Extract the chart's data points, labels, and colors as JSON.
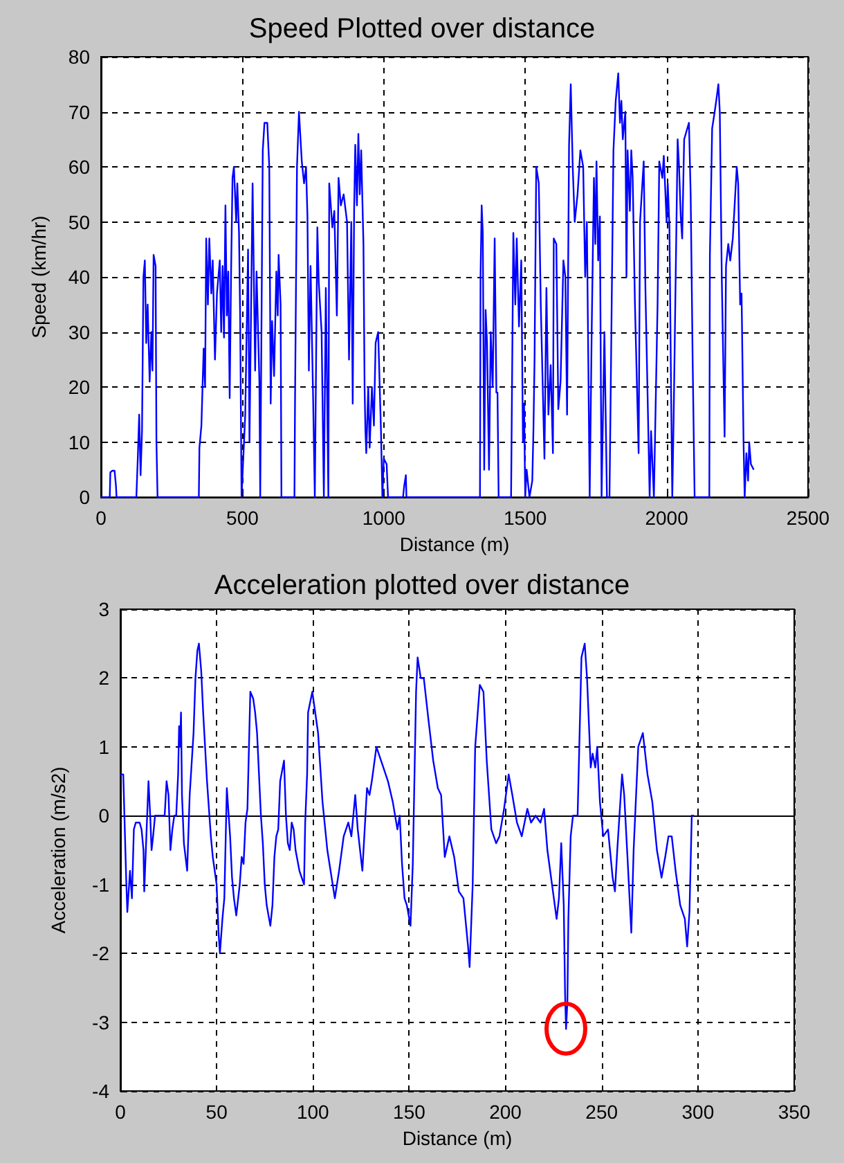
{
  "chart_data": [
    {
      "type": "line",
      "title": "Speed Plotted over distance",
      "xlabel": "Distance (m)",
      "ylabel": "Speed (km/hr)",
      "xlim": [
        0,
        2500
      ],
      "ylim": [
        0,
        80
      ],
      "xticks": [
        0,
        500,
        1000,
        1500,
        2000,
        2500
      ],
      "yticks": [
        0,
        10,
        20,
        30,
        40,
        50,
        60,
        70,
        80
      ],
      "grid": true,
      "x": [
        0,
        31,
        33,
        40,
        48,
        53,
        55,
        125,
        130,
        135,
        140,
        145,
        150,
        155,
        160,
        165,
        172,
        178,
        182,
        186,
        193,
        196,
        200,
        346,
        348,
        355,
        363,
        368,
        372,
        378,
        383,
        390,
        395,
        403,
        410,
        420,
        425,
        430,
        435,
        440,
        445,
        450,
        455,
        460,
        465,
        470,
        478,
        482,
        488,
        492,
        497,
        510,
        520,
        525,
        536,
        545,
        550,
        560,
        563,
        572,
        578,
        588,
        595,
        600,
        605,
        612,
        620,
        625,
        628,
        635,
        638,
        684,
        686,
        693,
        700,
        710,
        718,
        725,
        730,
        735,
        741,
        750,
        756,
        765,
        770,
        780,
        788,
        795,
        804,
        807,
        818,
        825,
        834,
        840,
        848,
        858,
        870,
        877,
        885,
        890,
        895,
        899,
        905,
        910,
        915,
        920,
        928,
        932,
        935,
        938,
        945,
        950,
        958,
        965,
        971,
        980,
        990,
        995,
        1000,
        1010,
        1015,
        1068,
        1072,
        1078,
        1080,
        1340,
        1342,
        1346,
        1350,
        1355,
        1360,
        1365,
        1372,
        1378,
        1385,
        1392,
        1398,
        1402,
        1406,
        1450,
        1458,
        1465,
        1470,
        1478,
        1486,
        1492,
        1496,
        1500,
        1505,
        1515,
        1525,
        1529,
        1533,
        1539,
        1548,
        1555,
        1562,
        1568,
        1575,
        1582,
        1590,
        1598,
        1601,
        1610,
        1617,
        1625,
        1635,
        1642,
        1648,
        1655,
        1661,
        1668,
        1675,
        1685,
        1695,
        1705,
        1712,
        1718,
        1728,
        1735,
        1743,
        1748,
        1752,
        1758,
        1764,
        1770,
        1780,
        1789,
        1798,
        1812,
        1820,
        1829,
        1835,
        1840,
        1845,
        1854,
        1858,
        1862,
        1870,
        1875,
        1880,
        1888,
        1901,
        1906,
        1919,
        1925,
        1940,
        1945,
        1955,
        1968,
        1974,
        1985,
        1990,
        2000,
        2004,
        2010,
        2015,
        2020,
        2025,
        2039,
        2044,
        2050,
        2055,
        2062,
        2079,
        2085,
        2092,
        2099,
        2151,
        2153,
        2161,
        2170,
        2178,
        2183,
        2188,
        2195,
        2205,
        2210,
        2218,
        2225,
        2234,
        2248,
        2253,
        2260,
        2265,
        2272,
        2276,
        2282,
        2288,
        2292,
        2298,
        2308
      ],
      "series": [
        {
          "color": "#0000ff",
          "values": [
            0,
            0,
            4.5,
            4.8,
            4.8,
            2,
            0,
            0,
            7,
            15,
            4,
            12,
            40,
            43,
            28,
            35,
            21,
            30,
            23,
            44,
            42,
            10,
            0,
            0,
            9,
            13,
            27,
            20,
            47,
            35,
            47,
            37,
            43,
            25,
            37,
            43,
            30,
            42,
            29,
            53,
            33,
            41,
            18,
            41,
            58,
            60,
            50,
            57,
            48,
            33,
            0,
            15,
            45,
            10,
            57,
            23,
            41,
            21,
            0,
            63,
            68,
            68,
            60,
            17,
            32,
            22,
            41,
            33,
            44,
            35,
            0,
            0,
            17,
            60,
            70,
            61,
            57,
            60,
            51,
            23,
            42,
            18,
            0,
            49,
            39,
            30,
            0,
            38,
            0,
            57,
            49,
            52,
            33,
            58,
            53,
            55,
            50,
            25,
            50,
            17,
            52,
            64,
            53,
            66,
            55,
            63,
            46,
            20,
            12,
            8,
            20,
            9,
            20,
            13,
            28,
            30,
            12,
            0,
            7,
            6,
            0,
            0,
            2,
            4,
            0,
            0,
            40,
            53,
            48,
            5,
            34,
            28,
            5,
            30,
            20,
            47,
            19,
            19,
            0,
            0,
            48,
            35,
            47,
            31,
            43,
            10,
            17,
            0,
            5,
            0,
            3,
            12,
            25,
            60,
            57,
            35,
            20,
            7,
            38,
            15,
            24,
            8,
            47,
            46,
            16,
            21,
            43,
            40,
            15,
            64,
            75,
            60,
            50,
            55,
            63,
            60,
            40,
            50,
            0,
            30,
            58,
            46,
            61,
            43,
            51,
            0,
            30,
            0,
            0,
            63,
            72,
            77,
            68,
            72,
            65,
            70,
            40,
            63,
            52,
            63,
            58,
            35,
            8,
            50,
            61,
            38,
            0,
            12,
            0,
            35,
            61,
            58,
            62,
            50,
            57,
            49,
            23,
            0,
            15,
            65,
            60,
            51,
            47,
            65,
            68,
            55,
            25,
            0,
            0,
            44,
            67,
            70,
            73,
            75,
            70,
            40,
            11,
            42,
            46,
            43,
            47,
            60,
            57,
            35,
            37,
            10,
            0,
            8,
            3,
            10,
            6,
            5
          ]
        }
      ]
    },
    {
      "type": "line",
      "title": "Acceleration plotted over distance",
      "xlabel": "Distance (m)",
      "ylabel": "Acceleration (m/s2)",
      "xlim": [
        0,
        350
      ],
      "ylim": [
        -4,
        3
      ],
      "xticks": [
        0,
        50,
        100,
        150,
        200,
        250,
        300,
        350
      ],
      "yticks": [
        -4,
        -3,
        -2,
        -1,
        0,
        1,
        2,
        3
      ],
      "grid": true,
      "x": [
        0,
        1.5,
        2,
        3,
        3.6,
        5,
        6,
        7,
        8,
        10,
        11,
        12,
        12.4,
        13.5,
        14.6,
        15.5,
        16.2,
        17,
        18,
        20,
        23,
        24,
        25,
        26,
        27,
        28,
        29,
        30,
        30.5,
        31,
        31.5,
        32,
        33,
        34.7,
        36,
        38,
        39,
        40,
        40.8,
        42,
        43,
        44,
        45,
        47,
        48,
        50,
        51,
        51.7,
        53,
        54,
        55.3,
        57,
        58,
        59,
        60.2,
        62,
        63,
        64,
        65,
        66,
        67.5,
        69,
        70,
        71,
        72,
        73,
        74,
        75,
        76,
        77.9,
        79,
        80,
        81,
        82,
        83,
        85,
        86,
        87,
        88,
        89,
        90,
        91,
        93,
        95.4,
        96,
        97,
        97.5,
        99.7,
        102.7,
        105,
        107.5,
        111.4,
        113.6,
        116,
        118.4,
        120,
        122,
        123.3,
        125.7,
        128.1,
        129.4,
        130.6,
        133,
        134.2,
        136.6,
        139,
        141.5,
        143.9,
        145.1,
        146.3,
        147.6,
        148.8,
        150.7,
        151.9,
        153.6,
        154.4,
        156,
        157.6,
        160,
        162.5,
        164.9,
        166.6,
        168.5,
        170.9,
        173.4,
        175.8,
        178.2,
        180.6,
        181.4,
        183,
        184.3,
        186.7,
        188.6,
        190.3,
        192.7,
        195.2,
        196.9,
        199.3,
        201.7,
        203.6,
        206,
        208.5,
        211.4,
        213.3,
        215.7,
        218.2,
        220.1,
        221.8,
        224.2,
        226.6,
        227.8,
        229,
        230.3,
        231,
        231.5,
        232.2,
        232.7,
        233.9,
        235.1,
        237.5,
        239.5,
        241.2,
        242.4,
        244.3,
        245.3,
        246.7,
        247.7,
        249.1,
        250.8,
        253.3,
        255.7,
        256.9,
        258.1,
        260.6,
        261.7,
        263.4,
        265.4,
        266.6,
        269,
        271.4,
        273.8,
        276.3,
        278.7,
        281.1,
        283,
        284.7,
        286.4,
        288.4,
        290.8,
        293.2,
        294.4,
        295.6,
        296.8,
        298
      ],
      "series": [
        {
          "color": "#0000ff",
          "values": [
            0.6,
            0.6,
            0.1,
            -0.9,
            -1.4,
            -0.8,
            -1.2,
            -0.2,
            -0.1,
            -0.1,
            -0.2,
            -0.5,
            -1.1,
            -0.3,
            0.5,
            0.0,
            -0.5,
            -0.3,
            0,
            0,
            0,
            0.5,
            0.3,
            -0.5,
            -0.2,
            0,
            0,
            0.6,
            1.3,
            1.0,
            1.5,
            0.3,
            -0.4,
            -0.8,
            0.3,
            1.2,
            2.0,
            2.4,
            2.5,
            2.1,
            1.5,
            1.0,
            0.5,
            -0.3,
            -0.6,
            -1.0,
            -1.7,
            -2.0,
            -1.5,
            -1.2,
            0.4,
            -0.3,
            -0.9,
            -1.2,
            -1.45,
            -1.0,
            -0.6,
            -0.7,
            -0.1,
            0.1,
            1.8,
            1.7,
            1.5,
            1.2,
            0.6,
            0,
            -0.4,
            -1.0,
            -1.3,
            -1.6,
            -1.3,
            -0.6,
            -0.3,
            -0.2,
            0.5,
            0.8,
            0.0,
            -0.4,
            -0.5,
            -0.1,
            -0.2,
            -0.5,
            -0.8,
            -1.0,
            -0.1,
            0.6,
            1.5,
            1.8,
            1.2,
            0.2,
            -0.5,
            -1.2,
            -0.8,
            -0.3,
            -0.1,
            -0.3,
            0.3,
            -0.2,
            -0.8,
            0.4,
            0.3,
            0.5,
            1.0,
            0.9,
            0.7,
            0.5,
            0.2,
            -0.2,
            0.0,
            -0.7,
            -1.2,
            -1.3,
            -1.6,
            -0.7,
            1.8,
            2.3,
            2.0,
            2.0,
            1.4,
            0.8,
            0.4,
            0.3,
            -0.6,
            -0.3,
            -0.6,
            -1.1,
            -1.2,
            -1.9,
            -2.2,
            -1.0,
            1.0,
            1.9,
            1.8,
            0.8,
            -0.2,
            -0.4,
            -0.3,
            0.1,
            0.6,
            0.3,
            -0.1,
            -0.3,
            0.1,
            -0.1,
            0.0,
            -0.1,
            0.1,
            -0.5,
            -1.0,
            -1.5,
            -1.2,
            -0.4,
            -1.3,
            -2.6,
            -3.1,
            -2.7,
            -1.5,
            -0.3,
            0.0,
            0.0,
            2.3,
            2.5,
            2.0,
            0.7,
            0.9,
            0.7,
            1.0,
            0.2,
            -0.3,
            -0.2,
            -0.9,
            -1.1,
            -0.5,
            0.6,
            0.3,
            -0.6,
            -1.7,
            -0.5,
            1.0,
            1.2,
            0.6,
            0.2,
            -0.5,
            -0.9,
            -0.6,
            -0.3,
            -0.3,
            -0.8,
            -1.3,
            -1.5,
            -1.9,
            -1.4,
            0.0,
            0.0
          ]
        }
      ]
    }
  ]
}
